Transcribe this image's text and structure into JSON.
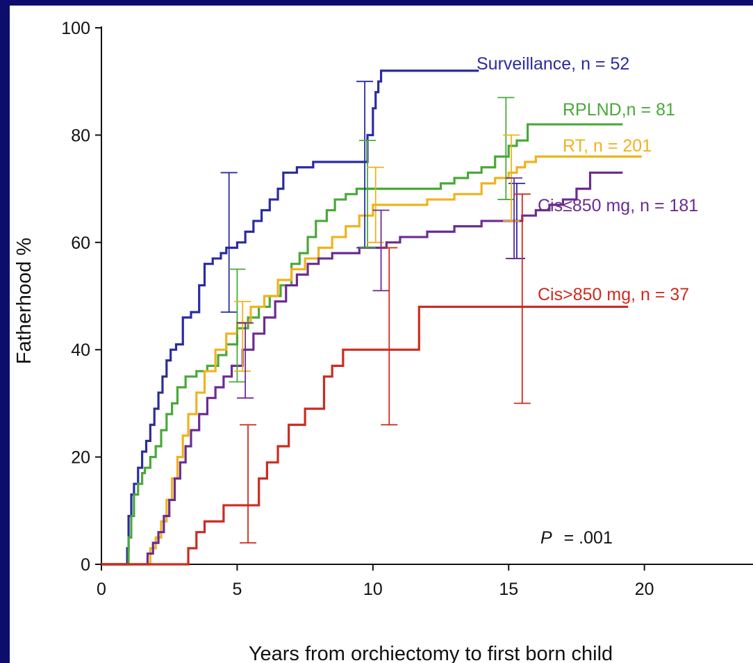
{
  "chart_data": {
    "type": "line",
    "step": true,
    "xlabel": "Years from orchiectomy to first born child",
    "ylabel": "Fatherhood %",
    "xlim": [
      0,
      24
    ],
    "ylim": [
      0,
      100
    ],
    "xticks": [
      0,
      5,
      10,
      15,
      20
    ],
    "yticks": [
      0,
      20,
      40,
      60,
      80,
      100
    ],
    "grid": false,
    "annotation": {
      "italic": "P",
      "text": "= .001"
    },
    "series": [
      {
        "name": "Surveillance, n = 52",
        "color": "#2b2ba0",
        "x": [
          0,
          0.9,
          0.95,
          1.0,
          1.1,
          1.2,
          1.35,
          1.5,
          1.65,
          1.8,
          1.95,
          2.1,
          2.25,
          2.4,
          2.55,
          2.75,
          3.0,
          3.3,
          3.6,
          3.8,
          4.1,
          4.4,
          4.6,
          5.0,
          5.3,
          5.6,
          5.9,
          6.2,
          6.5,
          6.7,
          7.2,
          7.8,
          8.8,
          9.6,
          9.8,
          10.0,
          10.1,
          10.2,
          10.3,
          13.9
        ],
        "y": [
          0,
          0,
          3,
          9,
          13,
          15,
          18,
          21,
          23,
          26,
          29,
          32,
          35,
          38,
          40,
          41,
          46,
          47,
          52,
          56,
          57,
          58,
          59,
          60,
          62,
          64,
          66,
          68,
          70,
          73,
          74,
          75,
          75,
          75,
          80,
          85,
          88,
          90,
          92,
          92
        ]
      },
      {
        "name": "RPLND,n = 81",
        "color": "#4aa83a",
        "x": [
          0,
          0.9,
          1.0,
          1.1,
          1.2,
          1.35,
          1.5,
          1.6,
          1.8,
          2.0,
          2.2,
          2.4,
          2.6,
          2.8,
          3.1,
          3.5,
          3.9,
          4.3,
          4.6,
          5.0,
          5.4,
          5.8,
          6.2,
          6.6,
          7.0,
          7.3,
          7.6,
          7.9,
          8.3,
          8.6,
          9.0,
          9.4,
          10.0,
          12.0,
          12.5,
          13.0,
          13.5,
          14.0,
          14.5,
          15.0,
          15.3,
          15.7,
          19.2
        ],
        "y": [
          0,
          0,
          5,
          9,
          13,
          15,
          17,
          18,
          20,
          22,
          25,
          28,
          30,
          33,
          35,
          36,
          37,
          39,
          41,
          44,
          46,
          48,
          50,
          52,
          56,
          58,
          61,
          64,
          66,
          68,
          69,
          70,
          70,
          70,
          71,
          72,
          73,
          74,
          76,
          78,
          79,
          82,
          82
        ]
      },
      {
        "name": "RT, n = 201",
        "color": "#f0b21e",
        "x": [
          0,
          1.5,
          1.8,
          2.0,
          2.2,
          2.4,
          2.6,
          2.8,
          3.0,
          3.2,
          3.5,
          3.8,
          4.2,
          4.6,
          5.0,
          5.5,
          6.0,
          6.5,
          7.0,
          7.5,
          8.0,
          8.5,
          9.0,
          9.5,
          10.0,
          10.5,
          11.0,
          12.0,
          13.0,
          14.0,
          14.5,
          15.0,
          15.3,
          15.6,
          16.0,
          19.9
        ],
        "y": [
          0,
          0,
          3,
          5,
          8,
          12,
          16,
          20,
          24,
          28,
          32,
          36,
          40,
          43,
          45,
          48,
          50,
          53,
          55,
          57,
          59,
          61,
          63,
          65,
          67,
          67,
          67,
          68,
          69,
          71,
          72,
          73,
          74,
          75,
          76,
          76
        ]
      },
      {
        "name": "Cis≤850 mg, n = 181",
        "color": "#6a2c91",
        "x": [
          0,
          1.5,
          1.7,
          1.9,
          2.1,
          2.3,
          2.5,
          2.7,
          2.9,
          3.1,
          3.3,
          3.6,
          3.9,
          4.2,
          4.5,
          4.8,
          5.2,
          5.6,
          6.0,
          6.4,
          6.8,
          7.2,
          7.6,
          8.0,
          8.5,
          9.0,
          9.5,
          10.0,
          10.5,
          11.0,
          12.0,
          13.0,
          14.0,
          15.0,
          15.5,
          16.0,
          16.5,
          17.0,
          17.5,
          18.0,
          19.2
        ],
        "y": [
          0,
          0,
          2,
          4,
          6,
          9,
          12,
          16,
          19,
          22,
          25,
          28,
          31,
          33,
          35,
          37,
          40,
          43,
          46,
          49,
          52,
          54,
          56,
          57,
          58,
          58,
          59,
          59,
          60,
          61,
          62,
          63,
          64,
          64,
          65,
          66,
          67,
          68,
          70,
          73,
          73
        ]
      },
      {
        "name": "Cis>850 mg, n = 37",
        "color": "#cc2b1e",
        "x": [
          0,
          3.2,
          3.5,
          3.8,
          4.5,
          5.8,
          6.1,
          6.5,
          6.9,
          7.5,
          8.2,
          8.5,
          8.9,
          10.5,
          11.7,
          19.4
        ],
        "y": [
          0,
          3,
          6,
          8,
          11,
          16,
          19,
          22,
          26,
          29,
          35,
          37,
          40,
          40,
          48,
          48
        ]
      }
    ],
    "error_bars": [
      {
        "series": 0,
        "x": 4.7,
        "low": 47,
        "high": 73
      },
      {
        "series": 0,
        "x": 9.7,
        "low": 59,
        "high": 90
      },
      {
        "series": 0,
        "x": 15.3,
        "low": 57,
        "high": 71
      },
      {
        "series": 1,
        "x": 5.0,
        "low": 34,
        "high": 55
      },
      {
        "series": 1,
        "x": 9.8,
        "low": 59,
        "high": 79
      },
      {
        "series": 1,
        "x": 14.9,
        "low": 68,
        "high": 87
      },
      {
        "series": 2,
        "x": 5.2,
        "low": 36,
        "high": 49
      },
      {
        "series": 2,
        "x": 10.1,
        "low": 60,
        "high": 74
      },
      {
        "series": 2,
        "x": 15.1,
        "low": 64,
        "high": 80
      },
      {
        "series": 3,
        "x": 5.3,
        "low": 31,
        "high": 45
      },
      {
        "series": 3,
        "x": 10.3,
        "low": 51,
        "high": 66
      },
      {
        "series": 3,
        "x": 15.2,
        "low": 57,
        "high": 72
      },
      {
        "series": 4,
        "x": 5.4,
        "low": 4,
        "high": 26
      },
      {
        "series": 4,
        "x": 10.6,
        "low": 26,
        "high": 59
      },
      {
        "series": 4,
        "x": 15.5,
        "low": 30,
        "high": 69
      }
    ]
  }
}
